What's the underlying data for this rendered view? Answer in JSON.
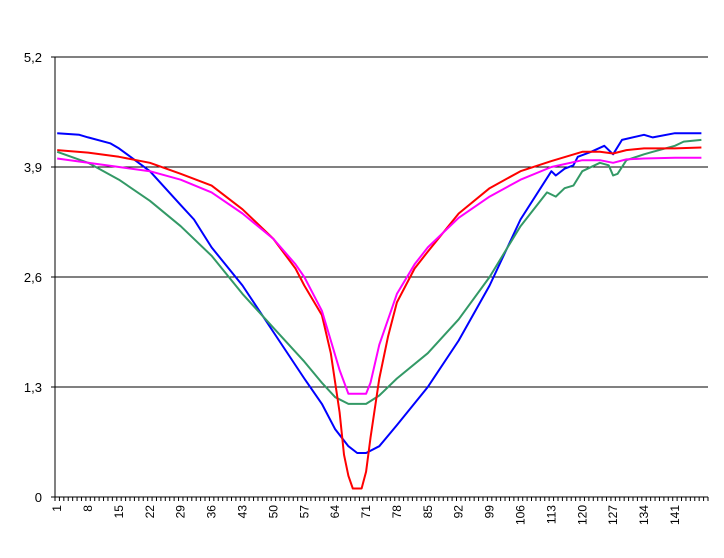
{
  "chart_data": {
    "type": "line",
    "title": "",
    "xlabel": "",
    "ylabel": "",
    "grid": "horizontal",
    "legend": "none",
    "xlim": [
      1,
      147
    ],
    "ylim": [
      0,
      5.2
    ],
    "y_ticks": [
      "0",
      "1,3",
      "2,6",
      "3,9",
      "5,2"
    ],
    "y_tick_values": [
      0,
      1.3,
      2.6,
      3.9,
      5.2
    ],
    "x_ticks": [
      "1",
      "8",
      "15",
      "22",
      "29",
      "36",
      "43",
      "50",
      "57",
      "64",
      "71",
      "78",
      "85",
      "92",
      "99",
      "106",
      "113",
      "120",
      "127",
      "134",
      "141"
    ],
    "x_tick_values": [
      1,
      8,
      15,
      22,
      29,
      36,
      43,
      50,
      57,
      64,
      71,
      78,
      85,
      92,
      99,
      106,
      113,
      120,
      127,
      134,
      141
    ],
    "series": [
      {
        "color": "#0000ff",
        "points": [
          [
            1,
            4.3
          ],
          [
            6,
            4.28
          ],
          [
            8,
            4.25
          ],
          [
            13,
            4.18
          ],
          [
            15,
            4.12
          ],
          [
            22,
            3.85
          ],
          [
            29,
            3.45
          ],
          [
            32,
            3.28
          ],
          [
            36,
            2.95
          ],
          [
            43,
            2.5
          ],
          [
            50,
            1.95
          ],
          [
            57,
            1.4
          ],
          [
            61,
            1.1
          ],
          [
            64,
            0.8
          ],
          [
            67,
            0.6
          ],
          [
            69,
            0.52
          ],
          [
            71,
            0.52
          ],
          [
            74,
            0.6
          ],
          [
            78,
            0.85
          ],
          [
            85,
            1.3
          ],
          [
            92,
            1.85
          ],
          [
            99,
            2.5
          ],
          [
            106,
            3.28
          ],
          [
            113,
            3.85
          ],
          [
            114,
            3.8
          ],
          [
            116,
            3.88
          ],
          [
            118,
            3.92
          ],
          [
            119,
            4.02
          ],
          [
            122,
            4.08
          ],
          [
            125,
            4.15
          ],
          [
            127,
            4.05
          ],
          [
            129,
            4.22
          ],
          [
            134,
            4.28
          ],
          [
            136,
            4.25
          ],
          [
            141,
            4.3
          ],
          [
            147,
            4.3
          ]
        ]
      },
      {
        "color": "#339966",
        "points": [
          [
            1,
            4.08
          ],
          [
            8,
            3.95
          ],
          [
            15,
            3.75
          ],
          [
            22,
            3.5
          ],
          [
            29,
            3.2
          ],
          [
            36,
            2.85
          ],
          [
            43,
            2.4
          ],
          [
            50,
            2.0
          ],
          [
            57,
            1.6
          ],
          [
            61,
            1.35
          ],
          [
            64,
            1.18
          ],
          [
            67,
            1.1
          ],
          [
            71,
            1.1
          ],
          [
            74,
            1.2
          ],
          [
            78,
            1.4
          ],
          [
            85,
            1.7
          ],
          [
            92,
            2.1
          ],
          [
            99,
            2.6
          ],
          [
            106,
            3.2
          ],
          [
            112,
            3.6
          ],
          [
            114,
            3.55
          ],
          [
            116,
            3.65
          ],
          [
            118,
            3.68
          ],
          [
            120,
            3.85
          ],
          [
            124,
            3.95
          ],
          [
            126,
            3.92
          ],
          [
            127,
            3.8
          ],
          [
            128,
            3.82
          ],
          [
            130,
            3.98
          ],
          [
            134,
            4.05
          ],
          [
            136,
            4.08
          ],
          [
            141,
            4.15
          ],
          [
            143,
            4.2
          ],
          [
            147,
            4.22
          ]
        ]
      },
      {
        "color": "#ff0000",
        "points": [
          [
            1,
            4.1
          ],
          [
            8,
            4.07
          ],
          [
            15,
            4.02
          ],
          [
            22,
            3.95
          ],
          [
            29,
            3.82
          ],
          [
            36,
            3.68
          ],
          [
            43,
            3.4
          ],
          [
            50,
            3.05
          ],
          [
            55,
            2.7
          ],
          [
            57,
            2.5
          ],
          [
            61,
            2.15
          ],
          [
            63,
            1.7
          ],
          [
            65,
            1.0
          ],
          [
            66,
            0.5
          ],
          [
            67,
            0.25
          ],
          [
            68,
            0.1
          ],
          [
            70,
            0.1
          ],
          [
            71,
            0.3
          ],
          [
            72,
            0.7
          ],
          [
            74,
            1.4
          ],
          [
            76,
            1.9
          ],
          [
            78,
            2.3
          ],
          [
            82,
            2.7
          ],
          [
            85,
            2.9
          ],
          [
            92,
            3.35
          ],
          [
            99,
            3.65
          ],
          [
            106,
            3.85
          ],
          [
            113,
            3.97
          ],
          [
            120,
            4.08
          ],
          [
            124,
            4.08
          ],
          [
            127,
            4.06
          ],
          [
            130,
            4.1
          ],
          [
            134,
            4.12
          ],
          [
            141,
            4.12
          ],
          [
            147,
            4.13
          ]
        ]
      },
      {
        "color": "#ff00ff",
        "points": [
          [
            1,
            4.0
          ],
          [
            8,
            3.95
          ],
          [
            15,
            3.9
          ],
          [
            22,
            3.85
          ],
          [
            29,
            3.75
          ],
          [
            36,
            3.6
          ],
          [
            43,
            3.35
          ],
          [
            50,
            3.05
          ],
          [
            55,
            2.75
          ],
          [
            57,
            2.6
          ],
          [
            61,
            2.2
          ],
          [
            63,
            1.85
          ],
          [
            65,
            1.5
          ],
          [
            67,
            1.22
          ],
          [
            71,
            1.22
          ],
          [
            72,
            1.35
          ],
          [
            74,
            1.8
          ],
          [
            76,
            2.1
          ],
          [
            78,
            2.4
          ],
          [
            82,
            2.75
          ],
          [
            85,
            2.95
          ],
          [
            92,
            3.3
          ],
          [
            99,
            3.55
          ],
          [
            106,
            3.75
          ],
          [
            113,
            3.9
          ],
          [
            120,
            3.98
          ],
          [
            124,
            3.98
          ],
          [
            127,
            3.95
          ],
          [
            130,
            3.99
          ],
          [
            134,
            4.0
          ],
          [
            141,
            4.01
          ],
          [
            147,
            4.01
          ]
        ]
      }
    ]
  }
}
